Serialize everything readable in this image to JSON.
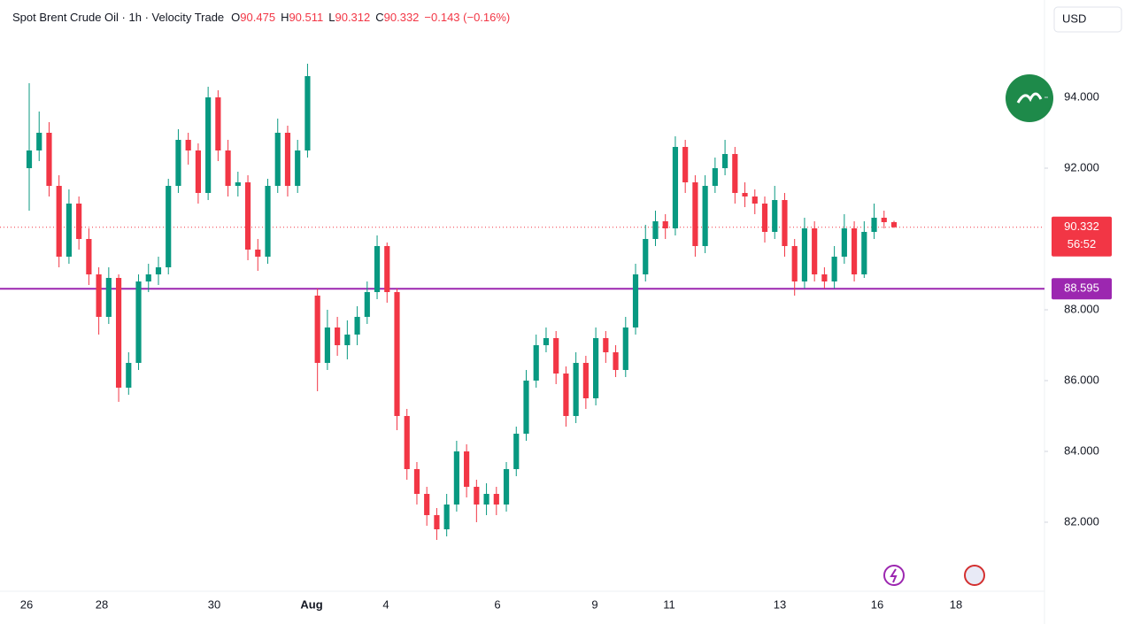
{
  "chart_data": {
    "type": "candlestick",
    "title": "Spot Brent Crude Oil · 1h · Velocity Trade",
    "ohlc_labels": [
      "O",
      "H",
      "L",
      "C"
    ],
    "change": "−0.143 (−0.16%)",
    "currency": "USD",
    "countdown": "56:52",
    "up_color": "#089981",
    "down_color": "#f23645",
    "x_labels": [
      "26",
      "28",
      "30",
      "Aug",
      "4",
      "6",
      "9",
      "11",
      "13",
      "16",
      "18"
    ],
    "candles": [
      [
        92.0,
        94.4,
        90.8,
        92.5
      ],
      [
        92.5,
        93.6,
        92.2,
        93.0
      ],
      [
        93.0,
        93.3,
        91.2,
        91.5
      ],
      [
        91.5,
        91.8,
        89.2,
        89.5
      ],
      [
        89.5,
        91.4,
        89.3,
        91.0
      ],
      [
        91.0,
        91.2,
        89.7,
        90.0
      ],
      [
        90.0,
        90.3,
        88.7,
        89.0
      ],
      [
        89.0,
        89.2,
        87.3,
        87.8
      ],
      [
        87.8,
        89.2,
        87.6,
        88.9
      ],
      [
        88.9,
        89.0,
        85.4,
        85.8
      ],
      [
        85.8,
        86.8,
        85.6,
        86.5
      ],
      [
        86.5,
        89.0,
        86.3,
        88.8
      ],
      [
        88.8,
        89.3,
        88.5,
        89.0
      ],
      [
        89.0,
        89.5,
        88.7,
        89.2
      ],
      [
        89.2,
        91.7,
        89.0,
        91.5
      ],
      [
        91.5,
        93.1,
        91.3,
        92.8
      ],
      [
        92.8,
        93.0,
        92.1,
        92.5
      ],
      [
        92.5,
        92.7,
        91.0,
        91.3
      ],
      [
        91.3,
        94.3,
        91.1,
        94.0
      ],
      [
        94.0,
        94.2,
        92.2,
        92.5
      ],
      [
        92.5,
        92.8,
        91.2,
        91.5
      ],
      [
        91.5,
        91.9,
        91.2,
        91.6
      ],
      [
        91.6,
        91.8,
        89.4,
        89.7
      ],
      [
        89.7,
        90.0,
        89.1,
        89.5
      ],
      [
        89.5,
        91.7,
        89.3,
        91.5
      ],
      [
        91.5,
        93.4,
        91.3,
        93.0
      ],
      [
        93.0,
        93.2,
        91.2,
        91.5
      ],
      [
        91.5,
        92.8,
        91.3,
        92.5
      ],
      [
        92.5,
        94.95,
        92.3,
        94.6
      ],
      [
        88.4,
        88.6,
        85.7,
        86.5
      ],
      [
        86.5,
        88.0,
        86.3,
        87.5
      ],
      [
        87.5,
        87.8,
        86.7,
        87.0
      ],
      [
        87.0,
        87.7,
        86.6,
        87.3
      ],
      [
        87.3,
        88.1,
        87.0,
        87.8
      ],
      [
        87.8,
        88.8,
        87.6,
        88.5
      ],
      [
        88.5,
        90.1,
        88.3,
        89.8
      ],
      [
        89.8,
        89.9,
        88.2,
        88.5
      ],
      [
        88.5,
        88.6,
        84.6,
        85.0
      ],
      [
        85.0,
        85.2,
        83.2,
        83.5
      ],
      [
        83.5,
        83.7,
        82.5,
        82.8
      ],
      [
        82.8,
        83.0,
        81.9,
        82.2
      ],
      [
        82.2,
        82.4,
        81.5,
        81.8
      ],
      [
        81.8,
        82.8,
        81.6,
        82.5
      ],
      [
        82.5,
        84.3,
        82.3,
        84.0
      ],
      [
        84.0,
        84.2,
        82.7,
        83.0
      ],
      [
        83.0,
        83.2,
        82.0,
        82.5
      ],
      [
        82.5,
        83.1,
        82.2,
        82.8
      ],
      [
        82.8,
        83.0,
        82.2,
        82.5
      ],
      [
        82.5,
        83.7,
        82.3,
        83.5
      ],
      [
        83.5,
        84.7,
        83.3,
        84.5
      ],
      [
        84.5,
        86.3,
        84.3,
        86.0
      ],
      [
        86.0,
        87.3,
        85.8,
        87.0
      ],
      [
        87.0,
        87.5,
        86.8,
        87.2
      ],
      [
        87.2,
        87.4,
        85.9,
        86.2
      ],
      [
        86.2,
        86.4,
        84.7,
        85.0
      ],
      [
        85.0,
        86.8,
        84.8,
        86.5
      ],
      [
        86.5,
        86.7,
        85.2,
        85.5
      ],
      [
        85.5,
        87.5,
        85.3,
        87.2
      ],
      [
        87.2,
        87.4,
        86.5,
        86.8
      ],
      [
        86.8,
        87.0,
        86.1,
        86.3
      ],
      [
        86.3,
        87.8,
        86.1,
        87.5
      ],
      [
        87.5,
        89.3,
        87.3,
        89.0
      ],
      [
        89.0,
        90.4,
        88.8,
        90.0
      ],
      [
        90.0,
        90.8,
        89.8,
        90.5
      ],
      [
        90.5,
        90.7,
        90.0,
        90.3
      ],
      [
        90.3,
        92.9,
        90.1,
        92.6
      ],
      [
        92.6,
        92.8,
        91.3,
        91.6
      ],
      [
        91.6,
        91.8,
        89.5,
        89.8
      ],
      [
        89.8,
        91.8,
        89.6,
        91.5
      ],
      [
        91.5,
        92.3,
        91.3,
        92.0
      ],
      [
        92.0,
        92.8,
        91.8,
        92.4
      ],
      [
        92.4,
        92.6,
        91.0,
        91.3
      ],
      [
        91.3,
        91.6,
        90.9,
        91.2
      ],
      [
        91.2,
        91.4,
        90.7,
        91.0
      ],
      [
        91.0,
        91.2,
        89.9,
        90.2
      ],
      [
        90.2,
        91.5,
        90.0,
        91.1
      ],
      [
        91.1,
        91.3,
        89.5,
        89.8
      ],
      [
        89.8,
        90.0,
        88.4,
        88.8
      ],
      [
        88.8,
        90.6,
        88.6,
        90.3
      ],
      [
        90.3,
        90.5,
        88.8,
        89.0
      ],
      [
        89.0,
        89.2,
        88.6,
        88.8
      ],
      [
        88.8,
        89.8,
        88.6,
        89.5
      ],
      [
        89.5,
        90.7,
        89.3,
        90.3
      ],
      [
        90.3,
        90.5,
        88.8,
        89.0
      ],
      [
        89.0,
        90.5,
        88.9,
        90.2
      ],
      [
        90.2,
        91.0,
        90.0,
        90.6
      ],
      [
        90.6,
        90.8,
        90.3,
        90.475
      ],
      [
        90.475,
        90.511,
        90.312,
        90.332
      ]
    ],
    "hline": {
      "value": 88.595,
      "color": "#9c27b0"
    },
    "ylim": [
      80,
      96
    ],
    "yticks": [
      {
        "value": 82,
        "label": "82.000"
      },
      {
        "value": 84,
        "label": "84.000"
      },
      {
        "value": 86,
        "label": "86.000"
      },
      {
        "value": 88,
        "label": "88.000"
      },
      {
        "value": 92,
        "label": "92.000"
      },
      {
        "value": 94,
        "label": "94.000"
      }
    ]
  }
}
